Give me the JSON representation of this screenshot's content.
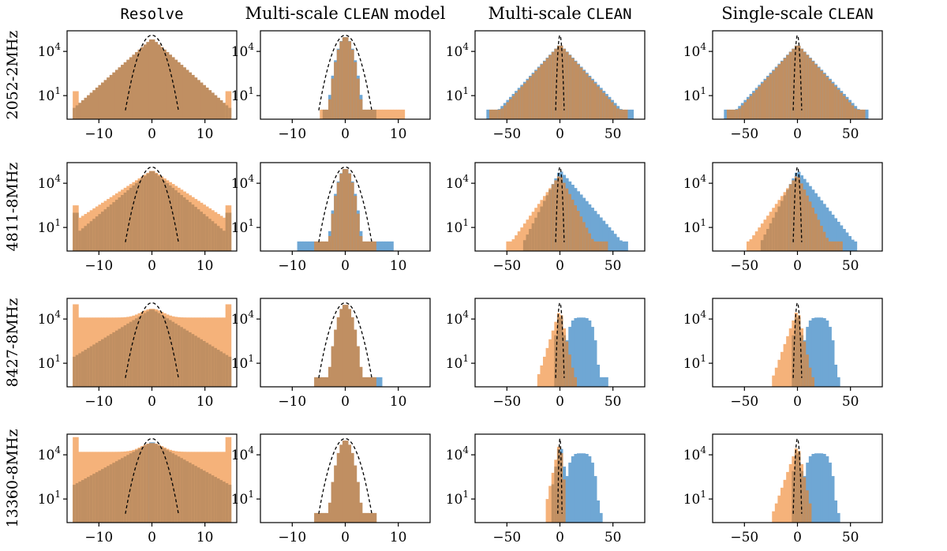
{
  "chart_data": {
    "type": "histogram-grid",
    "title": "",
    "col_titles": [
      {
        "pre": "",
        "mono": "Resolve"
      },
      {
        "pre": "Multi-scale ",
        "mono": "CLEAN",
        "post": " model"
      },
      {
        "pre": "Multi-scale ",
        "mono": "CLEAN"
      },
      {
        "pre": "Single-scale ",
        "mono": "CLEAN"
      }
    ],
    "row_labels": [
      "2052-2MHz",
      "4811-8MHz",
      "8427-8MHz",
      "13360-8MHz"
    ],
    "yscale": "log",
    "ylim_log10": [
      -0.6,
      5.4
    ],
    "yticks": [
      {
        "base": "10",
        "exp": "1",
        "value": 1
      },
      {
        "base": "10",
        "exp": "4",
        "value": 4
      }
    ],
    "col_xlims": [
      [
        -16,
        16
      ],
      [
        -16,
        16
      ],
      [
        -80,
        80
      ],
      [
        -80,
        80
      ]
    ],
    "col_xticks": [
      [
        -10,
        0,
        10
      ],
      [
        -10,
        0,
        10
      ],
      [
        -50,
        0,
        50
      ],
      [
        -50,
        0,
        50
      ]
    ],
    "xtick_labels": [
      [
        "−10",
        "0",
        "10"
      ],
      [
        "−10",
        "0",
        "10"
      ],
      [
        "−50",
        "0",
        "50"
      ],
      [
        "−50",
        "0",
        "50"
      ]
    ],
    "series_colors": {
      "blue": "#6fa7d4",
      "orange": "#f5b27a",
      "overlap": "#c08f62",
      "gaussian": "#000000"
    },
    "legend": [],
    "panels": [
      [
        {
          "gauss_halfwidth": 5,
          "blue": {
            "peak": 4.9,
            "xmin": -15,
            "xmax": 15,
            "model": "laplace",
            "scale": 3.1
          },
          "orange": {
            "peak": 4.9,
            "xmin": -15,
            "xmax": 15,
            "model": "laplace",
            "scale": 3.1,
            "edge": 1.3
          }
        },
        {
          "gauss_halfwidth": 5,
          "blue": {
            "peak": 5.0,
            "xmin": -4,
            "xmax": 6,
            "model": "gauss",
            "scale": 1.4
          },
          "orange": {
            "peak": 5.0,
            "xmin": -5,
            "xmax": 11,
            "model": "gauss",
            "scale": 1.35
          }
        },
        {
          "gauss_halfwidth": 4,
          "blue": {
            "peak": 4.5,
            "xmin": -70,
            "xmax": 68,
            "model": "laplace",
            "scale": 13
          },
          "orange": {
            "peak": 4.5,
            "xmin": -66,
            "xmax": 64,
            "model": "laplace",
            "scale": 12.5
          }
        },
        {
          "gauss_halfwidth": 4,
          "blue": {
            "peak": 4.5,
            "xmin": -70,
            "xmax": 66,
            "model": "laplace",
            "scale": 13
          },
          "orange": {
            "peak": 4.5,
            "xmin": -66,
            "xmax": 64,
            "model": "laplace",
            "scale": 12.5
          }
        }
      ],
      [
        {
          "gauss_halfwidth": 5,
          "blue": {
            "peak": 4.9,
            "xmin": -15,
            "xmax": 15,
            "model": "laplace",
            "scale": 3.3,
            "edge": 2.0
          },
          "orange": {
            "peak": 4.9,
            "xmin": -15,
            "xmax": 15,
            "model": "laplace",
            "scale": 4.2,
            "edge": 2.5
          }
        },
        {
          "gauss_halfwidth": 5,
          "blue": {
            "peak": 5.0,
            "xmin": -9,
            "xmax": 9,
            "model": "gauss",
            "scale": 1.35
          },
          "orange": {
            "peak": 5.0,
            "xmin": -6,
            "xmax": 6,
            "model": "gauss",
            "scale": 1.3
          }
        },
        {
          "gauss_halfwidth": 4,
          "blue": {
            "peak": 4.9,
            "xmin": -35,
            "xmax": 65,
            "model": "skew",
            "left": 7,
            "right": 12
          },
          "orange": {
            "peak": 4.6,
            "xmin": -50,
            "xmax": 45,
            "model": "skew",
            "left": 10,
            "right": 7
          }
        },
        {
          "gauss_halfwidth": 4,
          "blue": {
            "peak": 4.9,
            "xmin": -35,
            "xmax": 55,
            "model": "skew",
            "left": 7,
            "right": 11
          },
          "orange": {
            "peak": 4.6,
            "xmin": -48,
            "xmax": 42,
            "model": "skew",
            "left": 10,
            "right": 6.5
          }
        }
      ],
      [
        {
          "gauss_halfwidth": 5,
          "blue": {
            "peak": 4.7,
            "xmin": -15,
            "xmax": 15,
            "model": "laplace",
            "scale": 4.5,
            "edge": 0.5
          },
          "orange": {
            "peak": 4.7,
            "xmin": -15,
            "xmax": 15,
            "model": "flat",
            "level": 4.1,
            "edge": 5.0
          }
        },
        {
          "gauss_halfwidth": 5,
          "blue": {
            "peak": 5.0,
            "xmin": -6,
            "xmax": 7,
            "model": "gauss",
            "scale": 1.35
          },
          "orange": {
            "peak": 5.0,
            "xmin": -6,
            "xmax": 6,
            "model": "gauss",
            "scale": 1.35
          }
        },
        {
          "gauss_halfwidth": 4,
          "blue": {
            "peak": 4.7,
            "xmin": -6,
            "xmax": 45,
            "model": "shoulder"
          },
          "orange": {
            "peak": 4.7,
            "xmin": -22,
            "xmax": 16,
            "model": "skew",
            "left": 4.5,
            "right": 3
          }
        },
        {
          "gauss_halfwidth": 4,
          "blue": {
            "peak": 4.7,
            "xmin": -6,
            "xmax": 40,
            "model": "shoulder"
          },
          "orange": {
            "peak": 4.7,
            "xmin": -24,
            "xmax": 16,
            "model": "skew",
            "left": 5,
            "right": 3
          }
        }
      ],
      [
        {
          "gauss_halfwidth": 5,
          "blue": {
            "peak": 4.9,
            "xmin": -15,
            "xmax": 15,
            "model": "laplace",
            "scale": 5,
            "edge": 0.5
          },
          "orange": {
            "peak": 4.8,
            "xmin": -15,
            "xmax": 15,
            "model": "flat",
            "level": 4.2,
            "edge": 5.2
          }
        },
        {
          "gauss_halfwidth": 5,
          "blue": {
            "peak": 5.0,
            "xmin": -6,
            "xmax": 6,
            "model": "gauss",
            "scale": 1.35
          },
          "orange": {
            "peak": 5.0,
            "xmin": -6,
            "xmax": 6,
            "model": "gauss",
            "scale": 1.35
          }
        },
        {
          "gauss_halfwidth": 2,
          "blue": {
            "peak": 5.0,
            "xmin": -8,
            "xmax": 40,
            "model": "shoulder"
          },
          "orange": {
            "peak": 5.0,
            "xmin": -14,
            "xmax": 6,
            "model": "skew",
            "left": 3,
            "right": 1.5
          }
        },
        {
          "gauss_halfwidth": 4,
          "blue": {
            "peak": 4.7,
            "xmin": -6,
            "xmax": 40,
            "model": "shoulder"
          },
          "orange": {
            "peak": 4.7,
            "xmin": -24,
            "xmax": 14,
            "model": "skew",
            "left": 5,
            "right": 3
          }
        }
      ]
    ]
  }
}
